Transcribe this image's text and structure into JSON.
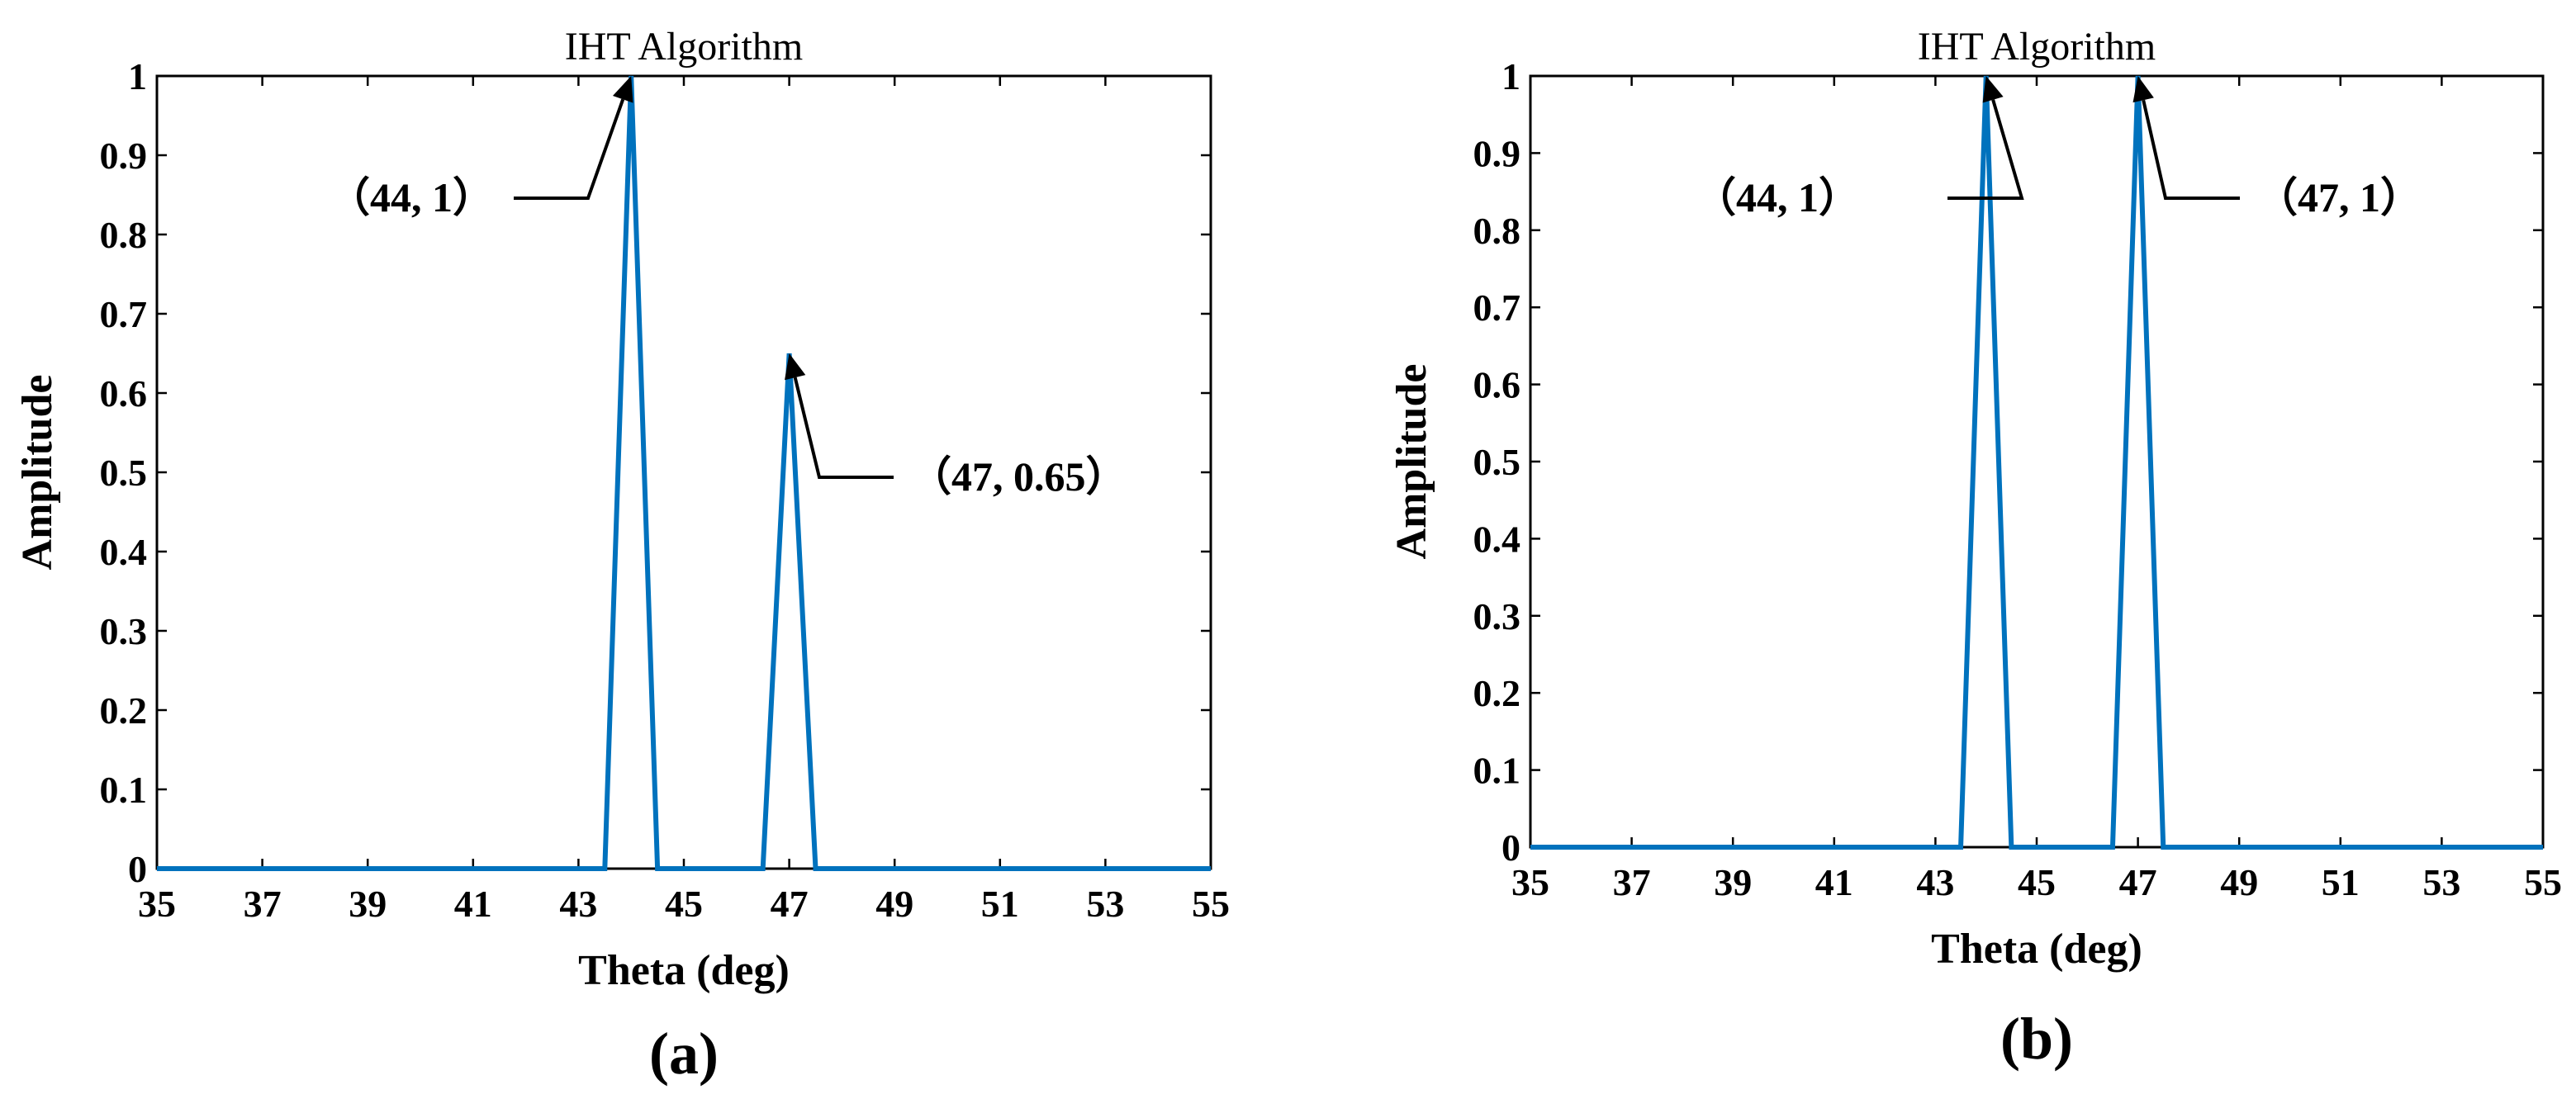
{
  "chart_data": [
    {
      "type": "line",
      "panel_label": "(a)",
      "title": "IHT Algorithm",
      "xlabel": "Theta (deg)",
      "ylabel": "Amplitude",
      "xlim": [
        35,
        55
      ],
      "ylim": [
        0,
        1
      ],
      "xticks": [
        "35",
        "37",
        "39",
        "41",
        "43",
        "45",
        "47",
        "49",
        "51",
        "53",
        "55"
      ],
      "yticks": [
        "0",
        "0.1",
        "0.2",
        "0.3",
        "0.4",
        "0.5",
        "0.6",
        "0.7",
        "0.8",
        "0.9",
        "1"
      ],
      "grid": false,
      "series": [
        {
          "color": "#0072BD",
          "x": [
            35,
            43.5,
            44,
            44.5,
            46.5,
            47,
            47.5,
            55
          ],
          "y": [
            0,
            0,
            1,
            0,
            0,
            0.65,
            0,
            0
          ]
        }
      ],
      "annotations": [
        {
          "text": "（44, 1）",
          "x": 44,
          "y": 1
        },
        {
          "text": "（47, 0.65）",
          "x": 47,
          "y": 0.65
        }
      ]
    },
    {
      "type": "line",
      "panel_label": "(b)",
      "title": "IHT Algorithm",
      "xlabel": "Theta (deg)",
      "ylabel": "Amplitude",
      "xlim": [
        35,
        55
      ],
      "ylim": [
        0,
        1
      ],
      "xticks": [
        "35",
        "37",
        "39",
        "41",
        "43",
        "45",
        "47",
        "49",
        "51",
        "53",
        "55"
      ],
      "yticks": [
        "0",
        "0.1",
        "0.2",
        "0.3",
        "0.4",
        "0.5",
        "0.6",
        "0.7",
        "0.8",
        "0.9",
        "1"
      ],
      "grid": false,
      "series": [
        {
          "color": "#0072BD",
          "x": [
            35,
            43.5,
            44,
            44.5,
            46.5,
            47,
            47.5,
            55
          ],
          "y": [
            0,
            0,
            1,
            0,
            0,
            1,
            0,
            0
          ]
        }
      ],
      "annotations": [
        {
          "text": "（44, 1）",
          "x": 44,
          "y": 1
        },
        {
          "text": "（47, 1）",
          "x": 47,
          "y": 1
        }
      ]
    }
  ]
}
